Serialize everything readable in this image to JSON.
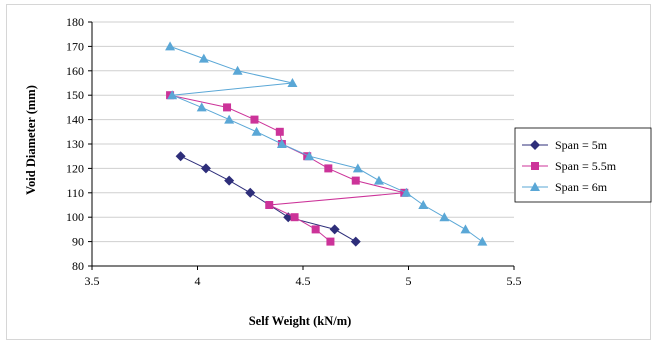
{
  "chart_data": {
    "type": "line",
    "title": "",
    "xlabel": "Self Weight (kN/m)",
    "ylabel": "Void Diameter (mm)",
    "xlim": [
      3.5,
      5.5
    ],
    "ylim": [
      80,
      180
    ],
    "xticks": [
      "3.5",
      "4",
      "4.5",
      "5",
      "5.5"
    ],
    "yticks": [
      "80",
      "90",
      "100",
      "110",
      "120",
      "130",
      "140",
      "150",
      "160",
      "170",
      "180"
    ],
    "grid": "horizontal",
    "legend_position": "right",
    "series": [
      {
        "name": "Span = 5m",
        "color": "#2e2e7a",
        "marker": "diamond",
        "points": [
          [
            3.92,
            125
          ],
          [
            4.04,
            120
          ],
          [
            4.15,
            115
          ],
          [
            4.25,
            110
          ],
          [
            4.43,
            100
          ],
          [
            4.65,
            95
          ],
          [
            4.75,
            90
          ]
        ]
      },
      {
        "name": "Span = 5.5m",
        "color": "#cc3399",
        "marker": "square",
        "points": [
          [
            3.87,
            150
          ],
          [
            4.14,
            145
          ],
          [
            4.27,
            140
          ],
          [
            4.39,
            135
          ],
          [
            4.4,
            130
          ],
          [
            4.52,
            125
          ],
          [
            4.62,
            120
          ],
          [
            4.75,
            115
          ],
          [
            4.98,
            110
          ],
          [
            4.34,
            105
          ],
          [
            4.46,
            100
          ],
          [
            4.56,
            95
          ],
          [
            4.63,
            90
          ]
        ]
      },
      {
        "name": "Span = 6m",
        "color": "#5aa7d6",
        "marker": "triangle",
        "points": [
          [
            3.87,
            170
          ],
          [
            4.03,
            165
          ],
          [
            4.19,
            160
          ],
          [
            4.45,
            155
          ],
          [
            3.88,
            150
          ],
          [
            4.02,
            145
          ],
          [
            4.15,
            140
          ],
          [
            4.28,
            135
          ],
          [
            4.4,
            130
          ],
          [
            4.53,
            125
          ],
          [
            4.76,
            120
          ],
          [
            4.86,
            115
          ],
          [
            4.99,
            110
          ],
          [
            5.07,
            105
          ],
          [
            5.17,
            100
          ],
          [
            5.27,
            95
          ],
          [
            5.35,
            90
          ]
        ]
      }
    ]
  }
}
